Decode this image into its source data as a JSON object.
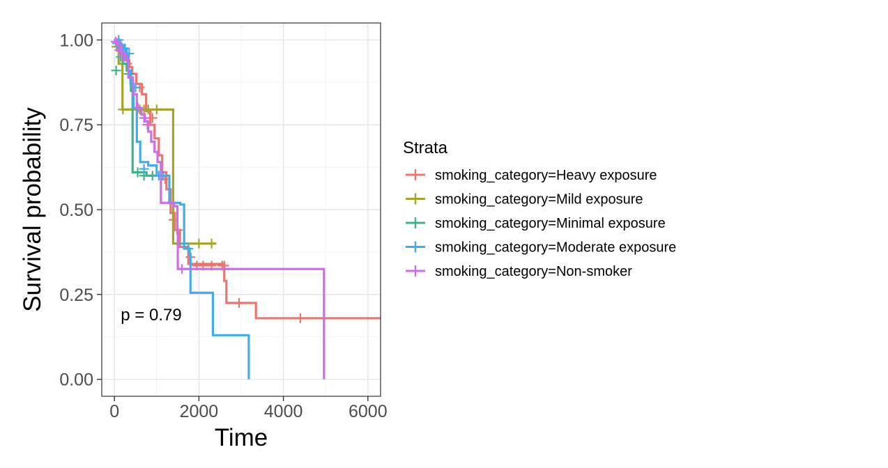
{
  "chart_data": {
    "type": "line",
    "subtype": "kaplan-meier step",
    "xlabel": "Time",
    "ylabel": "Survival probability",
    "xlim": [
      -300,
      6300
    ],
    "ylim": [
      -0.05,
      1.05
    ],
    "xticks": [
      0,
      2000,
      4000,
      6000
    ],
    "xtick_labels": [
      "0",
      "2000",
      "4000",
      "6000"
    ],
    "yticks": [
      0,
      0.25,
      0.5,
      0.75,
      1.0
    ],
    "ytick_labels": [
      "0.00",
      "0.25",
      "0.50",
      "0.75",
      "1.00"
    ],
    "grid": true,
    "annotation": {
      "text": "p = 0.79",
      "x": 150,
      "y": 0.19
    },
    "legend": {
      "title": "Strata",
      "position": "right"
    },
    "series": [
      {
        "name": "smoking_category=Heavy exposure",
        "color": "#E7766E",
        "steps": [
          [
            0,
            1.0
          ],
          [
            120,
            0.98
          ],
          [
            200,
            0.96
          ],
          [
            280,
            0.94
          ],
          [
            350,
            0.92
          ],
          [
            420,
            0.9
          ],
          [
            520,
            0.87
          ],
          [
            650,
            0.84
          ],
          [
            750,
            0.79
          ],
          [
            850,
            0.75
          ],
          [
            950,
            0.71
          ],
          [
            1050,
            0.66
          ],
          [
            1130,
            0.61
          ],
          [
            1230,
            0.56
          ],
          [
            1330,
            0.49
          ],
          [
            1430,
            0.44
          ],
          [
            1550,
            0.39
          ],
          [
            1750,
            0.34
          ],
          [
            2600,
            0.29
          ],
          [
            2650,
            0.225
          ],
          [
            3350,
            0.18
          ],
          [
            6300,
            0.18
          ]
        ],
        "censor": [
          [
            80,
            0.99
          ],
          [
            180,
            0.97
          ],
          [
            300,
            0.93
          ],
          [
            600,
            0.86
          ],
          [
            900,
            0.77
          ],
          [
            1200,
            0.59
          ],
          [
            1400,
            0.47
          ],
          [
            1500,
            0.44
          ],
          [
            1800,
            0.36
          ],
          [
            1950,
            0.335
          ],
          [
            2100,
            0.335
          ],
          [
            2300,
            0.335
          ],
          [
            2550,
            0.335
          ],
          [
            2600,
            0.335
          ],
          [
            2950,
            0.225
          ],
          [
            4400,
            0.18
          ]
        ]
      },
      {
        "name": "smoking_category=Mild exposure",
        "color": "#A4A32A",
        "steps": [
          [
            0,
            1.0
          ],
          [
            100,
            0.93
          ],
          [
            190,
            0.795
          ],
          [
            1340,
            0.795
          ],
          [
            1390,
            0.4
          ],
          [
            2400,
            0.4
          ]
        ],
        "censor": [
          [
            50,
            0.98
          ],
          [
            200,
            0.795
          ],
          [
            600,
            0.795
          ],
          [
            700,
            0.795
          ],
          [
            800,
            0.795
          ],
          [
            1000,
            0.795
          ],
          [
            2000,
            0.4
          ],
          [
            2300,
            0.4
          ]
        ]
      },
      {
        "name": "smoking_category=Minimal exposure",
        "color": "#3EB485",
        "steps": [
          [
            0,
            1.0
          ],
          [
            100,
            0.97
          ],
          [
            200,
            0.93
          ],
          [
            290,
            0.91
          ],
          [
            390,
            0.85
          ],
          [
            430,
            0.61
          ],
          [
            760,
            0.61
          ],
          [
            760,
            0.6
          ],
          [
            1000,
            0.6
          ]
        ],
        "censor": [
          [
            40,
            0.91
          ],
          [
            150,
            0.95
          ],
          [
            340,
            0.9
          ],
          [
            550,
            0.61
          ],
          [
            700,
            0.6
          ],
          [
            900,
            0.6
          ]
        ]
      },
      {
        "name": "smoking_category=Moderate exposure",
        "color": "#45AAE9",
        "steps": [
          [
            0,
            1.0
          ],
          [
            120,
            0.985
          ],
          [
            210,
            0.975
          ],
          [
            290,
            0.96
          ],
          [
            330,
            0.91
          ],
          [
            380,
            0.87
          ],
          [
            450,
            0.8
          ],
          [
            530,
            0.7
          ],
          [
            610,
            0.64
          ],
          [
            800,
            0.63
          ],
          [
            1000,
            0.6
          ],
          [
            1200,
            0.6
          ],
          [
            1300,
            0.52
          ],
          [
            1560,
            0.515
          ],
          [
            1650,
            0.385
          ],
          [
            1780,
            0.37
          ],
          [
            1800,
            0.255
          ],
          [
            2330,
            0.255
          ],
          [
            2330,
            0.13
          ],
          [
            3180,
            0.13
          ],
          [
            3180,
            0.0
          ]
        ],
        "censor": [
          [
            60,
            0.99
          ],
          [
            100,
            1.0
          ],
          [
            150,
            0.985
          ],
          [
            250,
            0.975
          ],
          [
            350,
            0.96
          ],
          [
            500,
            0.86
          ],
          [
            700,
            0.62
          ],
          [
            1050,
            0.6
          ],
          [
            1150,
            0.6
          ],
          [
            1650,
            0.4
          ],
          [
            1750,
            0.385
          ]
        ]
      },
      {
        "name": "smoking_category=Non-smoker",
        "color": "#CC6DE9",
        "steps": [
          [
            0,
            1.0
          ],
          [
            60,
            0.985
          ],
          [
            160,
            0.96
          ],
          [
            260,
            0.94
          ],
          [
            330,
            0.89
          ],
          [
            440,
            0.84
          ],
          [
            530,
            0.8
          ],
          [
            640,
            0.78
          ],
          [
            720,
            0.76
          ],
          [
            800,
            0.73
          ],
          [
            870,
            0.7
          ],
          [
            950,
            0.67
          ],
          [
            1020,
            0.64
          ],
          [
            1100,
            0.52
          ],
          [
            1410,
            0.51
          ],
          [
            1490,
            0.43
          ],
          [
            1500,
            0.325
          ],
          [
            4960,
            0.325
          ],
          [
            4960,
            0.0
          ]
        ],
        "censor": [
          [
            30,
            0.995
          ],
          [
            120,
            0.97
          ],
          [
            220,
            0.95
          ],
          [
            560,
            0.8
          ],
          [
            700,
            0.77
          ],
          [
            780,
            0.75
          ],
          [
            1600,
            0.325
          ]
        ]
      }
    ]
  }
}
